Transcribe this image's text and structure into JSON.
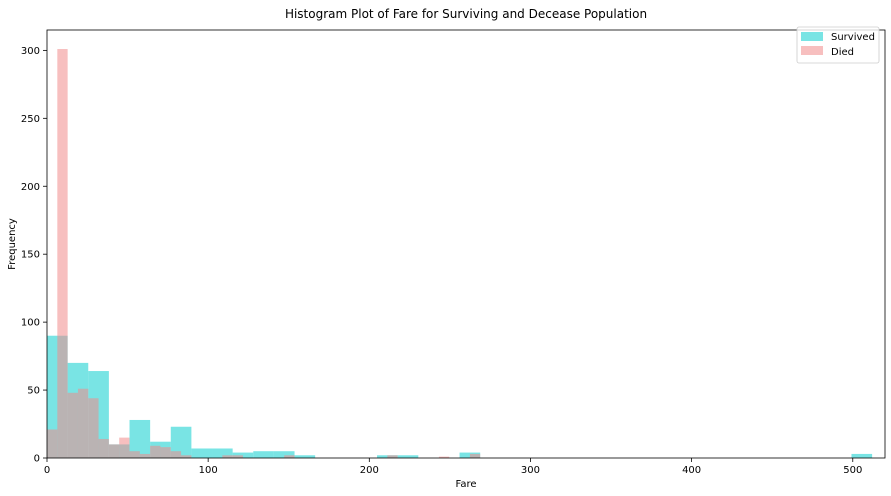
{
  "chart_data": {
    "type": "bar",
    "title": "Histogram Plot of Fare for Surviving and Decease Population",
    "xlabel": "Fare",
    "ylabel": "Frequency",
    "xlim": [
      0,
      520
    ],
    "ylim": [
      0,
      315
    ],
    "xticks": [
      0,
      100,
      200,
      300,
      400,
      500
    ],
    "yticks": [
      0,
      50,
      100,
      150,
      200,
      250,
      300
    ],
    "grid": false,
    "legend_position": "top-right",
    "series": [
      {
        "name": "Survived",
        "color": "#40d8d8",
        "opacity": 0.7,
        "bins": [
          {
            "x0": 0,
            "x1": 12.8,
            "count": 90
          },
          {
            "x0": 12.8,
            "x1": 25.6,
            "count": 70
          },
          {
            "x0": 25.6,
            "x1": 38.4,
            "count": 64
          },
          {
            "x0": 38.4,
            "x1": 51.2,
            "count": 10
          },
          {
            "x0": 51.2,
            "x1": 64.0,
            "count": 28
          },
          {
            "x0": 64.0,
            "x1": 76.8,
            "count": 12
          },
          {
            "x0": 76.8,
            "x1": 89.6,
            "count": 23
          },
          {
            "x0": 89.6,
            "x1": 102.4,
            "count": 7
          },
          {
            "x0": 102.4,
            "x1": 115.2,
            "count": 7
          },
          {
            "x0": 115.2,
            "x1": 128.0,
            "count": 4
          },
          {
            "x0": 128.0,
            "x1": 140.8,
            "count": 5
          },
          {
            "x0": 140.8,
            "x1": 153.6,
            "count": 5
          },
          {
            "x0": 153.6,
            "x1": 166.4,
            "count": 2
          },
          {
            "x0": 204.8,
            "x1": 217.6,
            "count": 2
          },
          {
            "x0": 217.6,
            "x1": 230.4,
            "count": 2
          },
          {
            "x0": 256.0,
            "x1": 268.8,
            "count": 4
          },
          {
            "x0": 499.2,
            "x1": 512.0,
            "count": 3
          }
        ]
      },
      {
        "name": "Died",
        "color": "#f08a8a",
        "opacity": 0.55,
        "bins": [
          {
            "x0": 0,
            "x1": 6.4,
            "count": 21
          },
          {
            "x0": 6.4,
            "x1": 12.8,
            "count": 301
          },
          {
            "x0": 12.8,
            "x1": 19.2,
            "count": 48
          },
          {
            "x0": 19.2,
            "x1": 25.6,
            "count": 51
          },
          {
            "x0": 25.6,
            "x1": 32.0,
            "count": 44
          },
          {
            "x0": 32.0,
            "x1": 38.4,
            "count": 14
          },
          {
            "x0": 38.4,
            "x1": 44.8,
            "count": 10
          },
          {
            "x0": 44.8,
            "x1": 51.2,
            "count": 15
          },
          {
            "x0": 51.2,
            "x1": 57.6,
            "count": 5
          },
          {
            "x0": 57.6,
            "x1": 64.0,
            "count": 3
          },
          {
            "x0": 64.0,
            "x1": 70.4,
            "count": 9
          },
          {
            "x0": 70.4,
            "x1": 76.8,
            "count": 8
          },
          {
            "x0": 76.8,
            "x1": 83.2,
            "count": 5
          },
          {
            "x0": 83.2,
            "x1": 89.6,
            "count": 2
          },
          {
            "x0": 108.8,
            "x1": 115.2,
            "count": 2
          },
          {
            "x0": 115.2,
            "x1": 121.6,
            "count": 2
          },
          {
            "x0": 147.2,
            "x1": 153.6,
            "count": 2
          },
          {
            "x0": 211.2,
            "x1": 217.6,
            "count": 2
          },
          {
            "x0": 243.2,
            "x1": 249.6,
            "count": 1
          },
          {
            "x0": 262.4,
            "x1": 268.8,
            "count": 3
          }
        ]
      }
    ]
  }
}
